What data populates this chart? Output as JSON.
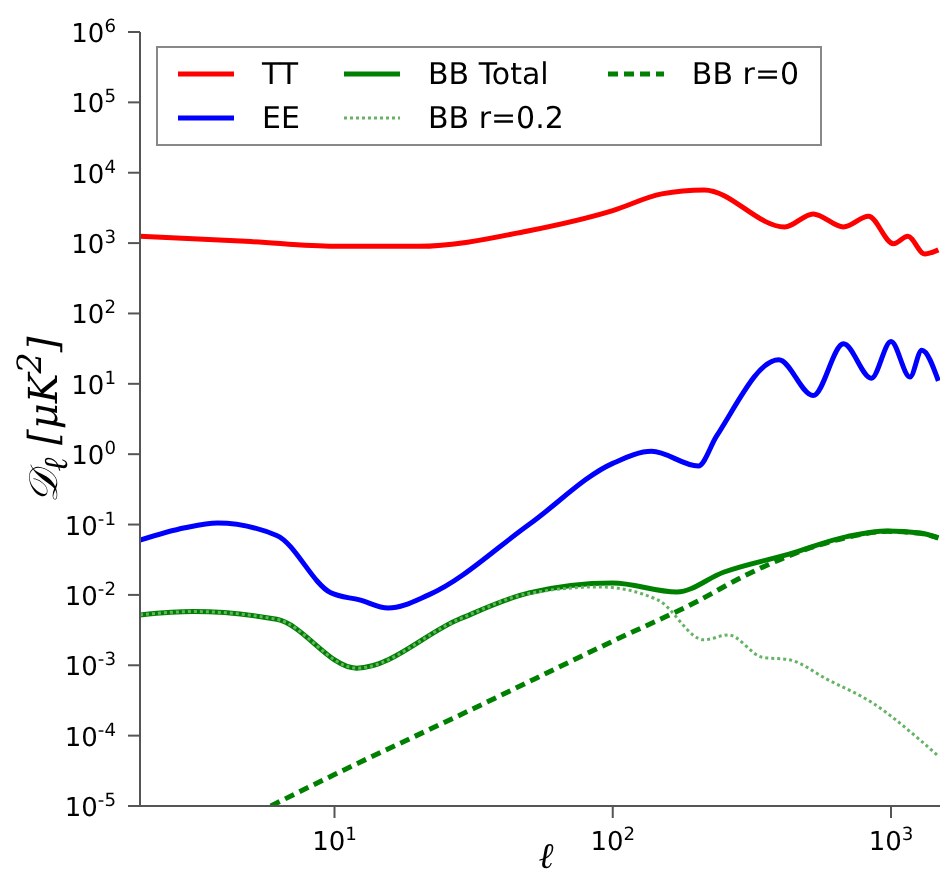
{
  "chart_data": {
    "type": "line",
    "xlabel": "ℓ",
    "ylabel": "𝒟$_{ℓ}$  [μK$^{2}$]",
    "log": "xy",
    "legend": "top",
    "marker": "none",
    "xlim": [
      2,
      1500
    ],
    "xticks": [
      {
        "value": 10,
        "label": "10$^{1}$"
      },
      {
        "value": 100,
        "label": "10$^{2}$"
      },
      {
        "value": 1000,
        "label": "10$^{3}$"
      }
    ],
    "ylim": [
      1e-05,
      1000000
    ],
    "yticks": [
      {
        "value": 1e-05,
        "label": "10$^{-5}$"
      },
      {
        "value": 0.0001,
        "label": "10$^{-4}$"
      },
      {
        "value": 0.001,
        "label": "10$^{-3}$"
      },
      {
        "value": 0.01,
        "label": "10$^{-2}$"
      },
      {
        "value": 0.1,
        "label": "10$^{-1}$"
      },
      {
        "value": 1,
        "label": "10$^{0}$"
      },
      {
        "value": 10,
        "label": "10$^{1}$"
      },
      {
        "value": 100,
        "label": "10$^{2}$"
      },
      {
        "value": 1000,
        "label": "10$^{3}$"
      },
      {
        "value": 10000,
        "label": "10$^{4}$"
      },
      {
        "value": 100000,
        "label": "10$^{5}$"
      },
      {
        "value": 1000000,
        "label": "10$^{6}$"
      }
    ],
    "series": [
      {
        "name": "TT",
        "color": "#ff0000",
        "line_style": "solid",
        "x": [
          2,
          5,
          10,
          20,
          50,
          100,
          150,
          213,
          415,
          525,
          675,
          830,
          1020,
          1150,
          1320,
          1480
        ],
        "values": [
          1250,
          1050,
          900,
          900,
          1500,
          2900,
          5000,
          5700,
          1700,
          2600,
          1700,
          2400,
          980,
          1250,
          700,
          800
        ]
      },
      {
        "name": "EE",
        "color": "#0000ff",
        "line_style": "solid",
        "x": [
          2,
          2.9,
          3.8,
          6.2,
          9.7,
          12.3,
          15.6,
          21.8,
          50,
          100,
          138,
          203,
          236,
          395,
          525,
          675,
          850,
          1000,
          1170,
          1290,
          1480
        ],
        "values": [
          0.06,
          0.09,
          0.105,
          0.07,
          0.0107,
          0.0085,
          0.0065,
          0.01,
          0.1,
          0.74,
          1.1,
          0.68,
          1.8,
          22,
          6.8,
          37,
          12,
          40,
          12.5,
          30,
          11
        ]
      },
      {
        "name": "BB Total",
        "color": "#008000",
        "line_style": "solid",
        "x": [
          2,
          3.1,
          6.2,
          12,
          28,
          50,
          100,
          170,
          250,
          430,
          700,
          970,
          1270,
          1480
        ],
        "values": [
          0.0052,
          0.0058,
          0.0045,
          0.00091,
          0.0045,
          0.0107,
          0.0148,
          0.011,
          0.021,
          0.038,
          0.068,
          0.081,
          0.076,
          0.065
        ]
      },
      {
        "name": "BB r=0.2",
        "color": "#66b366",
        "line_style": "dotted",
        "x": [
          2,
          3.1,
          6.2,
          12,
          28,
          50,
          90,
          145,
          213,
          260,
          345,
          430,
          590,
          860,
          1270,
          1480
        ],
        "values": [
          0.0052,
          0.0058,
          0.0045,
          0.00091,
          0.0045,
          0.0105,
          0.013,
          0.0085,
          0.0023,
          0.0027,
          0.0013,
          0.0012,
          0.00063,
          0.00029,
          8.7e-05,
          5.1e-05
        ]
      },
      {
        "name": "BB r=0",
        "color": "#008000",
        "line_style": "dashed",
        "x": [
          5.9,
          10,
          30,
          100,
          200,
          300,
          430,
          700,
          970,
          1270,
          1480
        ],
        "values": [
          1e-05,
          2.8e-05,
          0.00022,
          0.0022,
          0.008,
          0.019,
          0.036,
          0.066,
          0.08,
          0.075,
          0.064
        ]
      }
    ]
  }
}
